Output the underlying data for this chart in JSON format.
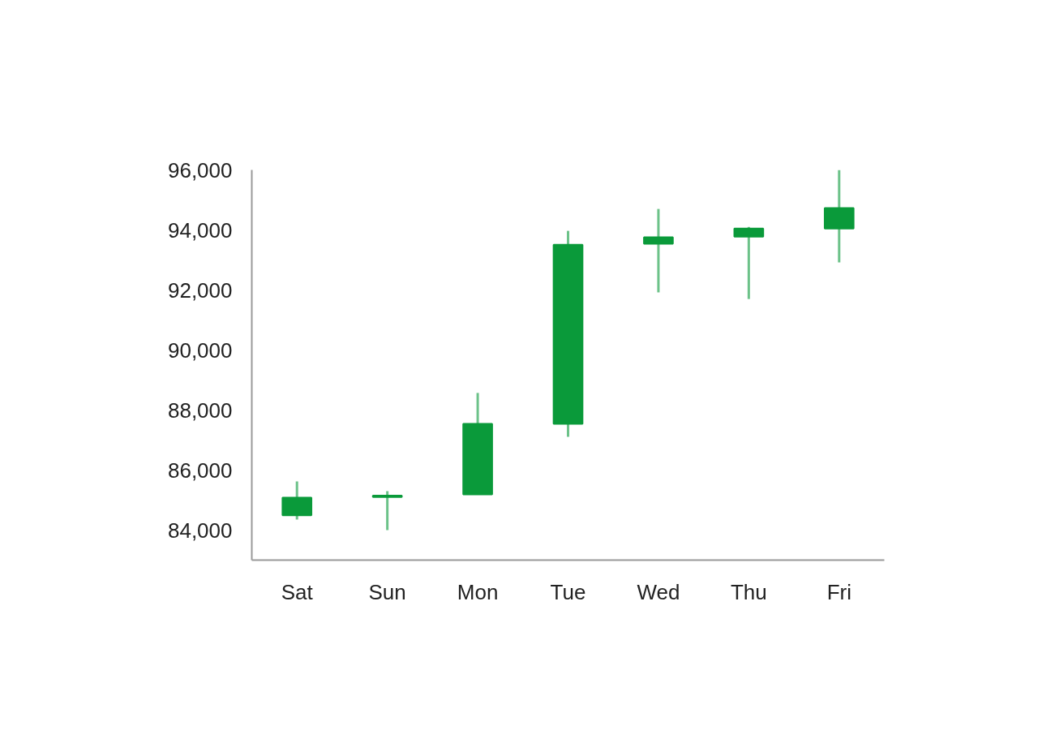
{
  "chart_data": {
    "type": "candlestick",
    "categories": [
      "Sat",
      "Sun",
      "Mon",
      "Tue",
      "Wed",
      "Thu",
      "Fri"
    ],
    "ohlc": [
      [
        84490,
        85620,
        84350,
        85080
      ],
      [
        85100,
        85300,
        84000,
        85150
      ],
      [
        85190,
        88570,
        85190,
        87540
      ],
      [
        87540,
        93970,
        87110,
        93510
      ],
      [
        93540,
        94700,
        91920,
        93760
      ],
      [
        93780,
        94100,
        91700,
        94050
      ],
      [
        94050,
        96000,
        92920,
        94730
      ]
    ],
    "color": "#0a9a3a",
    "ylim": [
      83000,
      96000
    ],
    "yticks": [
      {
        "value": 84000,
        "label": "84,000"
      },
      {
        "value": 86000,
        "label": "86,000"
      },
      {
        "value": 88000,
        "label": "88,000"
      },
      {
        "value": 90000,
        "label": "90,000"
      },
      {
        "value": 92000,
        "label": "92,000"
      },
      {
        "value": 94000,
        "label": "94,000"
      },
      {
        "value": 96000,
        "label": "96,000"
      }
    ],
    "grid": false
  }
}
